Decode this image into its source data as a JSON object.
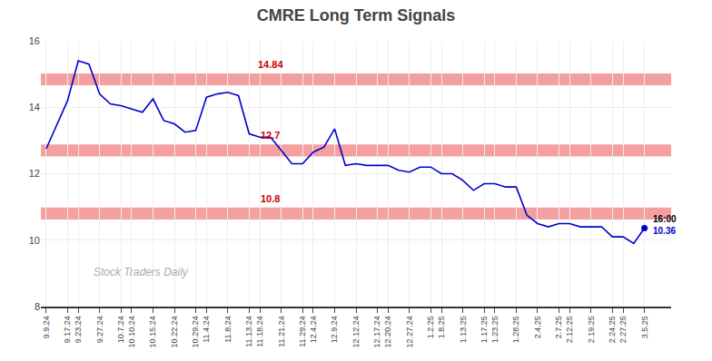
{
  "chart_data": {
    "type": "line",
    "title": "CMRE Long Term Signals",
    "categories": [
      "9.9.24",
      null,
      "9.17.24",
      "9.23.24",
      null,
      "9.27.24",
      null,
      "10.7.24",
      "10.10.24",
      null,
      "10.15.24",
      null,
      "10.22.24",
      null,
      "10.29.24",
      "11.4.24",
      null,
      "11.8.24",
      null,
      "11.13.24",
      "11.18.24",
      null,
      "11.21.24",
      null,
      "11.29.24",
      "12.4.24",
      null,
      "12.9.24",
      null,
      "12.12.24",
      null,
      "12.17.24",
      "12.20.24",
      null,
      "12.27.24",
      null,
      "1.2.25",
      "1.8.25",
      null,
      "1.13.25",
      null,
      "1.17.25",
      "1.23.25",
      null,
      "1.28.25",
      null,
      "2.4.25",
      null,
      "2.7.25",
      "2.12.25",
      null,
      "2.19.25",
      null,
      "2.24.25",
      "2.27.25",
      null,
      "3.5.25"
    ],
    "values": [
      12.75,
      13.5,
      14.2,
      15.4,
      15.3,
      14.4,
      14.1,
      14.05,
      13.95,
      13.85,
      14.25,
      13.6,
      13.5,
      13.25,
      13.3,
      14.3,
      14.4,
      14.45,
      14.35,
      13.2,
      13.1,
      13.1,
      12.7,
      12.3,
      12.3,
      12.65,
      12.8,
      13.35,
      12.25,
      12.3,
      12.25,
      12.25,
      12.25,
      12.1,
      12.05,
      12.2,
      12.2,
      12.0,
      12.0,
      11.8,
      11.5,
      11.7,
      11.7,
      11.6,
      11.6,
      10.75,
      10.5,
      10.4,
      10.5,
      10.5,
      10.4,
      10.4,
      10.4,
      10.1,
      10.1,
      9.9,
      10.36
    ],
    "color": "#0000cc",
    "ylim": [
      8,
      16
    ],
    "yticks": [
      8,
      10,
      12,
      14,
      16
    ],
    "grid": true,
    "reference_lines": [
      {
        "value": 14.84,
        "label": "14.84",
        "color": "#f4a0a0"
      },
      {
        "value": 12.7,
        "label": "12.7",
        "color": "#f4a0a0"
      },
      {
        "value": 10.8,
        "label": "10.8",
        "color": "#f4a0a0"
      }
    ],
    "annotations": [
      "16:00",
      "10.36"
    ],
    "watermark": "Stock Traders Daily"
  }
}
